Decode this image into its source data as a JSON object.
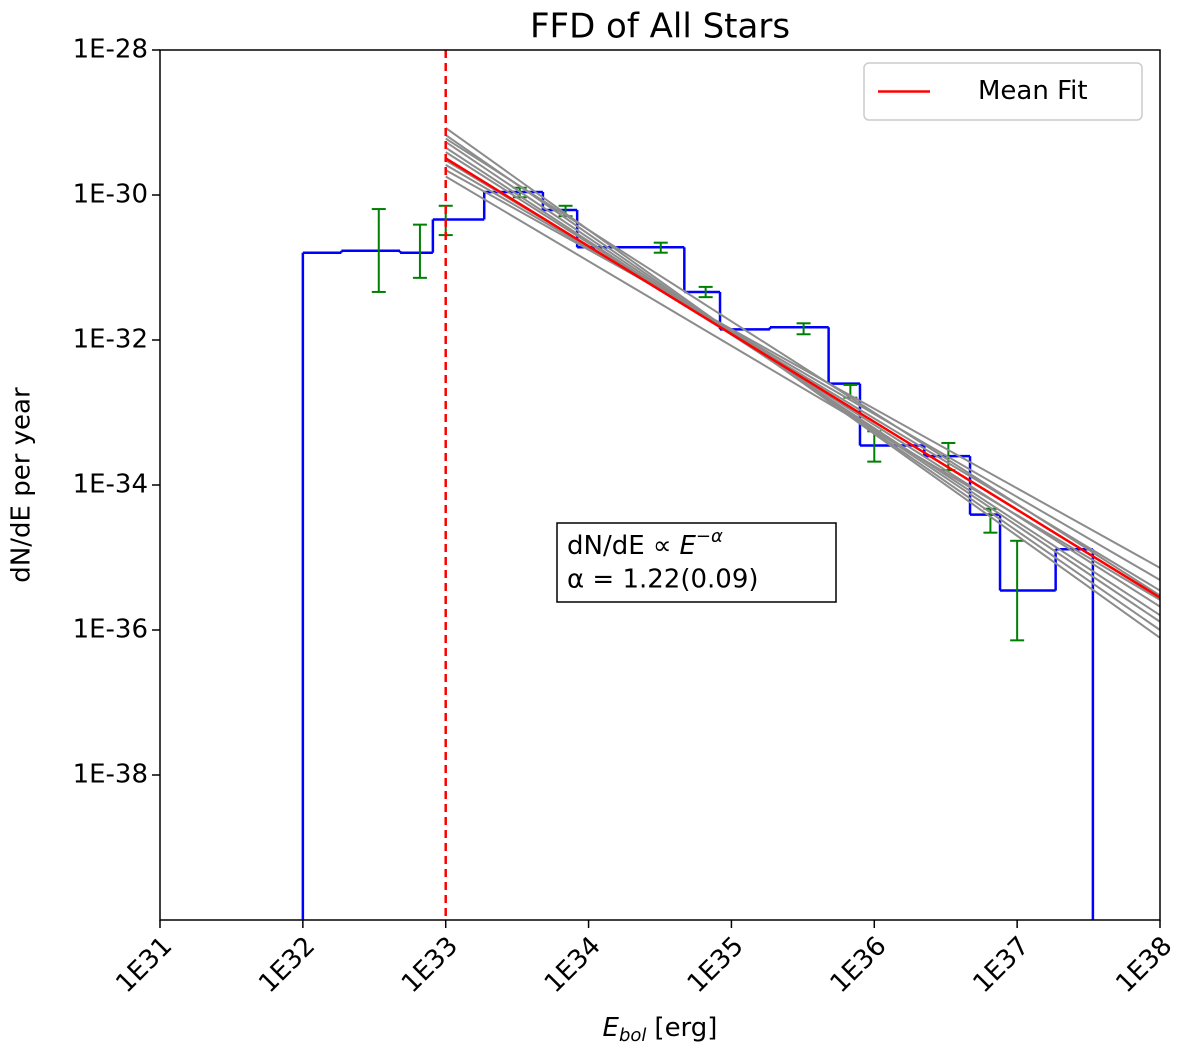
{
  "chart_data": {
    "type": "histogram",
    "title": "FFD of All Stars",
    "xlabel": {
      "base": "E",
      "sub": "bol",
      "unit": "[erg]"
    },
    "ylabel": "dN/dE per year",
    "log_x": true,
    "log_y": true,
    "xlim": [
      1e+31,
      1e+38
    ],
    "ylim": [
      1e-40,
      1e-28
    ],
    "xticks": [
      {
        "value": 1e+31,
        "label": "1E31"
      },
      {
        "value": 1e+32,
        "label": "1E32"
      },
      {
        "value": 1e+33,
        "label": "1E33"
      },
      {
        "value": 1e+34,
        "label": "1E34"
      },
      {
        "value": 1e+35,
        "label": "1E35"
      },
      {
        "value": 1e+36,
        "label": "1E36"
      },
      {
        "value": 1e+37,
        "label": "1E37"
      },
      {
        "value": 1e+38,
        "label": "1E38"
      }
    ],
    "yticks": [
      {
        "value": 1e-28,
        "label": "1E-28"
      },
      {
        "value": 1e-30,
        "label": "1E-30"
      },
      {
        "value": 1e-32,
        "label": "1E-32"
      },
      {
        "value": 1e-34,
        "label": "1E-34"
      },
      {
        "value": 1e-36,
        "label": "1E-36"
      },
      {
        "value": 1e-38,
        "label": "1E-38"
      }
    ],
    "bins": [
      1e+32,
      1.86e+32,
      4.79e+32,
      8.13e+32,
      1.86e+33,
      4.79e+33,
      8.32e+33,
      4.68e+34,
      8.32e+34,
      1.86e+35,
      4.79e+35,
      7.94e+35,
      2.24e+36,
      4.68e+36,
      7.59e+36,
      1.86e+37,
      3.39e+37
    ],
    "values": [
      1.6e-31,
      1.7e-31,
      1.6e-31,
      4.6e-31,
      1.1e-30,
      6.2e-31,
      1.9e-31,
      4.6e-32,
      1.4e-32,
      1.5e-32,
      2.5e-33,
      3.5e-34,
      2.5e-34,
      3.9e-35,
      3.5e-36,
      1.3e-35
    ],
    "color": "#0000ff",
    "errorbars": {
      "color": "#008000",
      "x": [
        3.4e+32,
        6.6e+32,
        1e+33,
        3.3e+33,
        6.9e+33,
        3.2e+34,
        6.6e+34,
        3.2e+35,
        6.8e+35,
        1e+36,
        3.3e+36,
        6.5e+36,
        1e+37
      ],
      "values": [
        1.7e-31,
        1.6e-31,
        4.6e-31,
        1.07e-30,
        6.2e-31,
        1.9e-31,
        4.6e-32,
        1.5e-32,
        1.9e-33,
        3.5e-34,
        2.5e-34,
        3.3e-35,
        3.5e-36
      ],
      "lower": [
        4.6e-32,
        7.2e-32,
        2.8e-31,
        9.3e-31,
        5.1e-31,
        1.6e-31,
        3.9e-32,
        1.2e-32,
        1.6e-33,
        2.1e-34,
        1.6e-34,
        2.2e-35,
        7.2e-37
      ],
      "upper": [
        6.4e-31,
        3.9e-31,
        7.1e-31,
        1.26e-30,
        7.1e-31,
        2.2e-31,
        5.4e-32,
        1.7e-32,
        2.4e-33,
        5.5e-34,
        3.8e-34,
        4.7e-35,
        1.7e-35
      ]
    },
    "fits": {
      "color": "#8c8c8c",
      "x": [
        1e+33,
        1e+38
      ],
      "lines": [
        [
          8.4e-30,
          7.8e-37
        ],
        [
          6.7e-30,
          1e-36
        ],
        [
          5.4e-30,
          1.3e-36
        ],
        [
          4.5e-30,
          1.6e-36
        ],
        [
          3.9e-30,
          2.1e-36
        ],
        [
          3e-30,
          3.5e-36
        ],
        [
          2.6e-30,
          4.9e-36
        ],
        [
          2.2e-30,
          7.2e-36
        ],
        [
          1.8e-30,
          2.6e-36
        ],
        [
          6e-30,
          3e-36
        ]
      ]
    },
    "series": [
      {
        "name": "Mean Fit",
        "color": "#ff0000",
        "x": [
          1e+33,
          1e+38
        ],
        "values": [
          3.2e-30,
          2.8e-36
        ]
      }
    ],
    "threshold": {
      "x": 1e+33,
      "color": "#ff0000"
    },
    "legend": "upper right",
    "annotation": {
      "prefix": "dN/dE ∝",
      "base": "E",
      "exponent": "−α",
      "alpha": "α = 1.22(0.09)"
    }
  }
}
